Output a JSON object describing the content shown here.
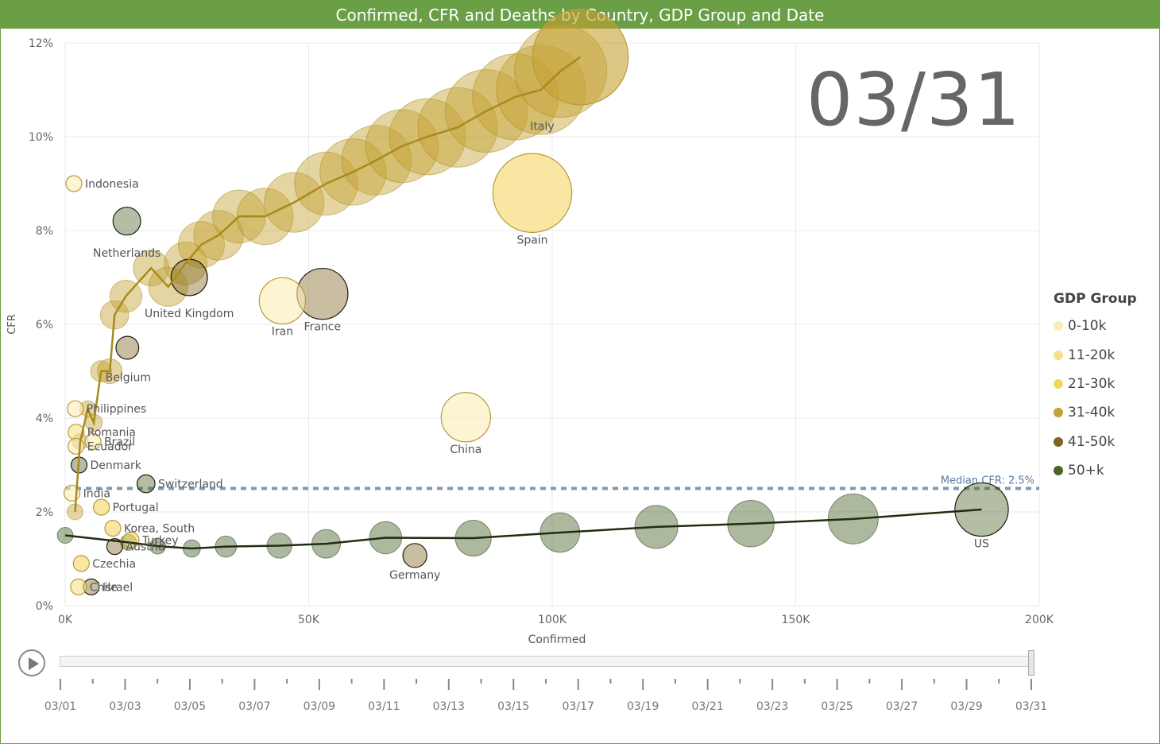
{
  "title": "Confirmed, CFR and Deaths by Country, GDP Group and Date",
  "date_stamp": "03/31",
  "legend": {
    "title": "GDP Group",
    "items": [
      {
        "label": "0-10k",
        "color": "#fcecb5"
      },
      {
        "label": "11-20k",
        "color": "#f8e088"
      },
      {
        "label": "21-30k",
        "color": "#f4d564"
      },
      {
        "label": "31-40k",
        "color": "#c4a232"
      },
      {
        "label": "41-50k",
        "color": "#7e6520"
      },
      {
        "label": "50+k",
        "color": "#4a6328"
      }
    ]
  },
  "timeline": {
    "labels": [
      "03/01",
      "03/03",
      "03/05",
      "03/07",
      "03/09",
      "03/11",
      "03/13",
      "03/15",
      "03/17",
      "03/19",
      "03/21",
      "03/23",
      "03/25",
      "03/27",
      "03/29",
      "03/31"
    ],
    "days": 31,
    "current_day": 31
  },
  "chart_data": {
    "type": "scatter",
    "xlabel": "Confirmed",
    "ylabel": "CFR",
    "xlim": [
      0,
      200000
    ],
    "ylim": [
      0,
      12
    ],
    "x_ticks": [
      0,
      50000,
      100000,
      150000,
      200000
    ],
    "x_tick_labels": [
      "0K",
      "50K",
      "100K",
      "150K",
      "200K"
    ],
    "y_ticks": [
      0,
      2,
      4,
      6,
      8,
      10,
      12
    ],
    "y_tick_labels": [
      "0%",
      "2%",
      "4%",
      "6%",
      "8%",
      "10%",
      "12%"
    ],
    "grid": true,
    "legend_position": "right",
    "reference_line": {
      "label": "Median CFR: 2.5%",
      "value": 2.5,
      "color": "#7c9bb5"
    },
    "countries": [
      {
        "name": "Italy",
        "group": "31-40k",
        "x": 105792,
        "y": 11.7,
        "deaths": 12428
      },
      {
        "name": "Spain",
        "group": "21-30k",
        "x": 95923,
        "y": 8.8,
        "deaths": 8464
      },
      {
        "name": "US",
        "group": "50+k",
        "x": 188172,
        "y": 2.05,
        "deaths": 3873
      },
      {
        "name": "France",
        "group": "41-50k",
        "x": 52827,
        "y": 6.65,
        "deaths": 3532
      },
      {
        "name": "China",
        "group": "0-10k",
        "x": 82279,
        "y": 4.02,
        "deaths": 3309
      },
      {
        "name": "Iran",
        "group": "0-10k",
        "x": 44605,
        "y": 6.5,
        "deaths": 2898
      },
      {
        "name": "United Kingdom",
        "group": "41-50k",
        "x": 25481,
        "y": 7.0,
        "deaths": 1793
      },
      {
        "name": "Netherlands",
        "group": "50+k",
        "x": 12667,
        "y": 8.2,
        "deaths": 1040
      },
      {
        "name": "Germany",
        "group": "41-50k",
        "x": 71808,
        "y": 1.07,
        "deaths": 775
      },
      {
        "name": "Belgium",
        "group": "41-50k",
        "x": 12775,
        "y": 5.5,
        "deaths": 705
      },
      {
        "name": "Switzerland",
        "group": "50+k",
        "x": 16605,
        "y": 2.6,
        "deaths": 433
      },
      {
        "name": "Brazil",
        "group": "0-10k",
        "x": 5717,
        "y": 3.5,
        "deaths": 201
      },
      {
        "name": "Turkey",
        "group": "21-30k",
        "x": 13531,
        "y": 1.4,
        "deaths": 214
      },
      {
        "name": "Indonesia",
        "group": "0-10k",
        "x": 1790,
        "y": 9.0,
        "deaths": 170
      },
      {
        "name": "Korea, South",
        "group": "21-30k",
        "x": 9786,
        "y": 1.65,
        "deaths": 162
      },
      {
        "name": "Denmark",
        "group": "50+k",
        "x": 2860,
        "y": 3.0,
        "deaths": 104
      },
      {
        "name": "Austria",
        "group": "41-50k",
        "x": 10180,
        "y": 1.26,
        "deaths": 128
      },
      {
        "name": "Philippines",
        "group": "0-10k",
        "x": 2084,
        "y": 4.2,
        "deaths": 88
      },
      {
        "name": "Ecuador",
        "group": "0-10k",
        "x": 2240,
        "y": 3.4,
        "deaths": 75
      },
      {
        "name": "Romania",
        "group": "11-20k",
        "x": 2245,
        "y": 3.7,
        "deaths": 82
      },
      {
        "name": "Portugal",
        "group": "21-30k",
        "x": 7443,
        "y": 2.1,
        "deaths": 160
      },
      {
        "name": "India",
        "group": "0-10k",
        "x": 1397,
        "y": 2.4,
        "deaths": 35
      },
      {
        "name": "Israel",
        "group": "41-50k",
        "x": 5358,
        "y": 0.4,
        "deaths": 21
      },
      {
        "name": "Czechia",
        "group": "21-30k",
        "x": 3308,
        "y": 0.9,
        "deaths": 31
      },
      {
        "name": "Chile",
        "group": "11-20k",
        "x": 2738,
        "y": 0.4,
        "deaths": 12
      }
    ],
    "us_trail": [
      {
        "x": 10,
        "y": 1.5
      },
      {
        "x": 13000,
        "y": 1.35
      },
      {
        "x": 19000,
        "y": 1.27
      },
      {
        "x": 26000,
        "y": 1.22
      },
      {
        "x": 33000,
        "y": 1.26
      },
      {
        "x": 44000,
        "y": 1.28
      },
      {
        "x": 53600,
        "y": 1.32
      },
      {
        "x": 65800,
        "y": 1.45
      },
      {
        "x": 83800,
        "y": 1.44
      },
      {
        "x": 101600,
        "y": 1.56
      },
      {
        "x": 121400,
        "y": 1.68
      },
      {
        "x": 140800,
        "y": 1.75
      },
      {
        "x": 161800,
        "y": 1.85
      },
      {
        "x": 188172,
        "y": 2.05
      }
    ],
    "italy_trail": [
      {
        "x": 2036,
        "y": 2.0
      },
      {
        "x": 3089,
        "y": 3.5
      },
      {
        "x": 4636,
        "y": 4.2
      },
      {
        "x": 5883,
        "y": 3.9
      },
      {
        "x": 7375,
        "y": 5.0
      },
      {
        "x": 9172,
        "y": 5.0
      },
      {
        "x": 10149,
        "y": 6.2
      },
      {
        "x": 12462,
        "y": 6.6
      },
      {
        "x": 17660,
        "y": 7.2
      },
      {
        "x": 21157,
        "y": 6.8
      },
      {
        "x": 24747,
        "y": 7.3
      },
      {
        "x": 27980,
        "y": 7.7
      },
      {
        "x": 31506,
        "y": 7.9
      },
      {
        "x": 35713,
        "y": 8.3
      },
      {
        "x": 41035,
        "y": 8.3
      },
      {
        "x": 47021,
        "y": 8.6
      },
      {
        "x": 53578,
        "y": 9.0
      },
      {
        "x": 59138,
        "y": 9.25
      },
      {
        "x": 63927,
        "y": 9.5
      },
      {
        "x": 69176,
        "y": 9.8
      },
      {
        "x": 74386,
        "y": 10.0
      },
      {
        "x": 80589,
        "y": 10.2
      },
      {
        "x": 86498,
        "y": 10.55
      },
      {
        "x": 92472,
        "y": 10.85
      },
      {
        "x": 97689,
        "y": 11.0
      },
      {
        "x": 101739,
        "y": 11.4
      },
      {
        "x": 105792,
        "y": 11.7
      }
    ]
  }
}
